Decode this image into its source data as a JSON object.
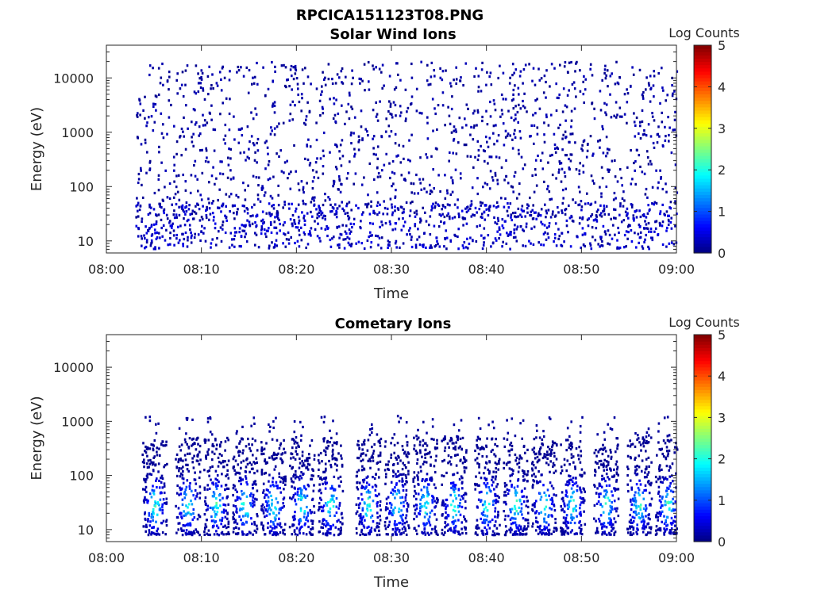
{
  "figure": {
    "title": "RPCICA151123T08.PNG"
  },
  "chart_data": [
    {
      "type": "heatmap",
      "title": "Solar Wind Ions",
      "xlabel": "Time",
      "ylabel": "Energy (eV)",
      "x_tick_labels": [
        "08:00",
        "08:10",
        "08:20",
        "08:30",
        "08:40",
        "08:50",
        "09:00"
      ],
      "x_tick_minutes": [
        0,
        10,
        20,
        30,
        40,
        50,
        60
      ],
      "xlim_minutes": [
        0,
        60
      ],
      "y_scale": "log",
      "ylim": [
        6,
        40000
      ],
      "y_tick_labels": [
        "10",
        "100",
        "1000",
        "10000"
      ],
      "y_tick_values": [
        10,
        100,
        1000,
        10000
      ],
      "colorbar": {
        "label": "Log Counts",
        "min": 0,
        "max": 5,
        "tick_labels": [
          "0",
          "1",
          "2",
          "3",
          "4",
          "5"
        ],
        "colormap": "jet"
      },
      "data_extent_minutes": [
        3,
        60
      ],
      "description_of_values": "sparse single counts (log counts ~0-0.5) scattered over 20 eV-20 keV; denser low-count bands below 60 eV"
    },
    {
      "type": "heatmap",
      "title": "Cometary Ions",
      "xlabel": "Time",
      "ylabel": "Energy (eV)",
      "x_tick_labels": [
        "08:00",
        "08:10",
        "08:20",
        "08:30",
        "08:40",
        "08:50",
        "09:00"
      ],
      "x_tick_minutes": [
        0,
        10,
        20,
        30,
        40,
        50,
        60
      ],
      "xlim_minutes": [
        0,
        60
      ],
      "y_scale": "log",
      "ylim": [
        6,
        40000
      ],
      "y_tick_labels": [
        "10",
        "100",
        "1000",
        "10000"
      ],
      "y_tick_values": [
        10,
        100,
        1000,
        10000
      ],
      "colorbar": {
        "label": "Log Counts",
        "min": 0,
        "max": 5,
        "tick_labels": [
          "0",
          "1",
          "2",
          "3",
          "4",
          "5"
        ],
        "colormap": "jet"
      },
      "burst_centers_minutes": [
        5,
        8.5,
        11.5,
        14.5,
        17.5,
        20.5,
        23.5,
        27.5,
        30.5,
        33.5,
        36.5,
        40,
        43,
        46,
        49,
        52.5,
        56,
        59
      ],
      "peak_log_counts": 2.4,
      "description_of_values": "periodic ion bursts between ~10 and ~500 eV, peak intensity near 20-40 eV"
    }
  ]
}
